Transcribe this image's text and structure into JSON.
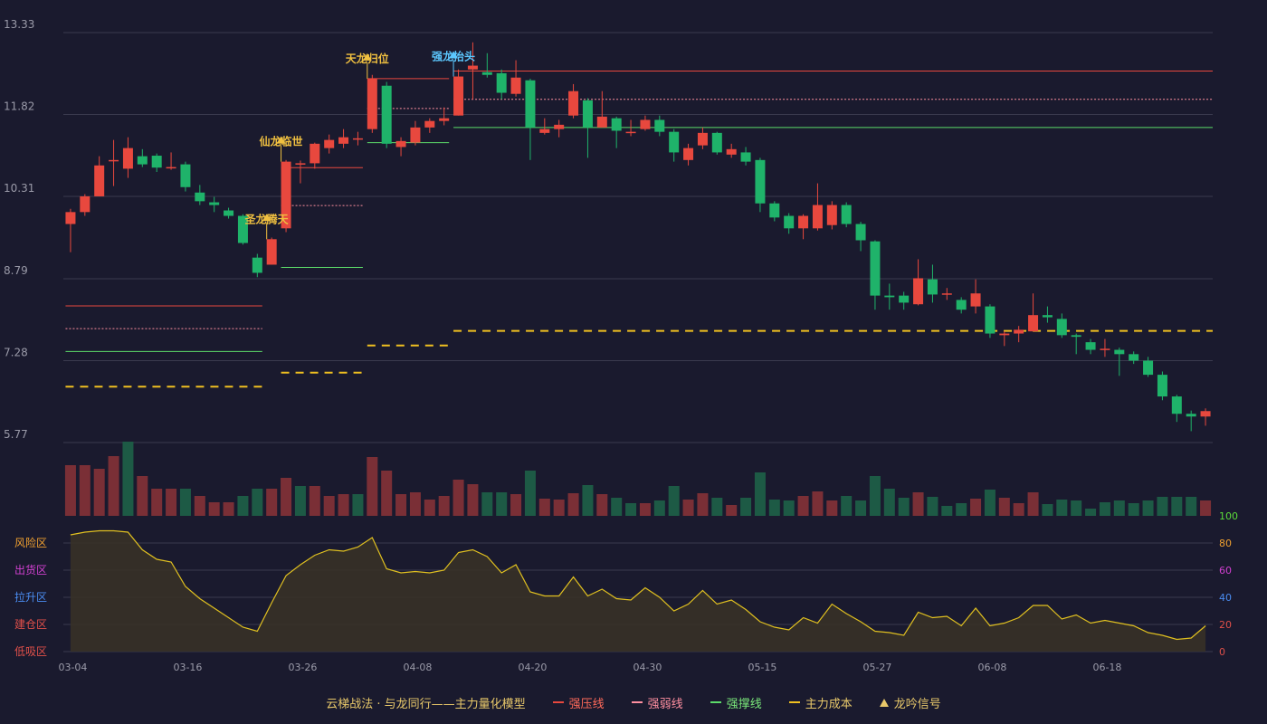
{
  "colors": {
    "background": "#1a1a2e",
    "up": "#e8483e",
    "down": "#1fb36a",
    "vol_up": "#7a2f36",
    "vol_down": "#1d5a45",
    "pressure": "#e8483e",
    "weak": "#ff8fa0",
    "support": "#5cdc6a",
    "cost": "#f0c020",
    "label_gold": "#f0c040",
    "label_blue": "#5cc8ff",
    "oscillator_line": "#e0c020",
    "grid": "#3a3a4e",
    "axis_text": "#9a9aa8"
  },
  "legend": {
    "title": "云梯战法 · 与龙同行——主力量化模型",
    "pressure": "强压线",
    "weak": "强弱线",
    "support": "强撑线",
    "cost": "主力成本",
    "signal": "龙吟信号"
  },
  "icons": {
    "signal": "triangle-up-icon"
  },
  "chart_data": [
    {
      "type": "candlestick",
      "title": "",
      "ylim": [
        5.77,
        13.33
      ],
      "yticks": [
        "13.33",
        "11.82",
        "10.31",
        "8.79",
        "7.28",
        "5.77"
      ],
      "xtick_labels": [
        {
          "index": 0,
          "label": "03-04"
        },
        {
          "index": 8,
          "label": "03-16"
        },
        {
          "index": 16,
          "label": "03-26"
        },
        {
          "index": 24,
          "label": "04-08"
        },
        {
          "index": 32,
          "label": "04-20"
        },
        {
          "index": 40,
          "label": "04-30"
        },
        {
          "index": 48,
          "label": "05-15"
        },
        {
          "index": 56,
          "label": "05-27"
        },
        {
          "index": 64,
          "label": "06-08"
        },
        {
          "index": 72,
          "label": "06-18"
        }
      ],
      "ohlc": [
        [
          9.8,
          10.02,
          9.28,
          10.08
        ],
        [
          10.02,
          10.31,
          9.95,
          10.35
        ],
        [
          10.31,
          10.88,
          10.31,
          11.05
        ],
        [
          10.98,
          10.98,
          10.5,
          11.35
        ],
        [
          10.82,
          11.2,
          10.65,
          11.4
        ],
        [
          11.05,
          10.9,
          10.85,
          11.18
        ],
        [
          11.06,
          10.84,
          10.76,
          11.1
        ],
        [
          10.85,
          10.85,
          10.8,
          11.12
        ],
        [
          10.9,
          10.48,
          10.4,
          10.95
        ],
        [
          10.38,
          10.22,
          10.15,
          10.52
        ],
        [
          10.2,
          10.15,
          10.02,
          10.3
        ],
        [
          10.05,
          9.95,
          9.9,
          10.1
        ],
        [
          9.95,
          9.45,
          9.42,
          9.98
        ],
        [
          9.18,
          8.9,
          8.82,
          9.25
        ],
        [
          9.05,
          9.52,
          9.05,
          9.55
        ],
        [
          9.72,
          10.95,
          9.65,
          10.98
        ],
        [
          10.92,
          10.92,
          10.55,
          10.97
        ],
        [
          10.92,
          11.28,
          10.82,
          11.3
        ],
        [
          11.2,
          11.35,
          11.1,
          11.45
        ],
        [
          11.28,
          11.4,
          11.2,
          11.55
        ],
        [
          11.38,
          11.38,
          11.25,
          11.5
        ],
        [
          11.55,
          12.48,
          11.48,
          12.55
        ],
        [
          12.35,
          11.28,
          11.2,
          12.42
        ],
        [
          11.22,
          11.33,
          11.05,
          11.4
        ],
        [
          11.3,
          11.58,
          11.25,
          11.7
        ],
        [
          11.58,
          11.7,
          11.48,
          11.75
        ],
        [
          11.7,
          11.75,
          11.62,
          11.95
        ],
        [
          11.8,
          12.52,
          11.8,
          12.65
        ],
        [
          12.65,
          12.72,
          12.1,
          13.15
        ],
        [
          12.6,
          12.55,
          12.5,
          12.95
        ],
        [
          12.58,
          12.22,
          12.1,
          12.65
        ],
        [
          12.2,
          12.5,
          12.15,
          12.82
        ],
        [
          12.45,
          11.58,
          10.98,
          12.48
        ],
        [
          11.48,
          11.55,
          11.45,
          11.75
        ],
        [
          11.55,
          11.63,
          11.4,
          11.72
        ],
        [
          11.8,
          12.25,
          11.75,
          12.38
        ],
        [
          12.08,
          11.58,
          11.02,
          12.12
        ],
        [
          11.58,
          11.78,
          11.58,
          12.25
        ],
        [
          11.75,
          11.52,
          11.2,
          11.78
        ],
        [
          11.5,
          11.5,
          11.42,
          11.72
        ],
        [
          11.55,
          11.72,
          11.52,
          11.8
        ],
        [
          11.72,
          11.5,
          11.42,
          11.8
        ],
        [
          11.5,
          11.12,
          10.95,
          11.55
        ],
        [
          10.98,
          11.2,
          10.88,
          11.28
        ],
        [
          11.25,
          11.48,
          11.18,
          11.58
        ],
        [
          11.48,
          11.12,
          11.08,
          11.5
        ],
        [
          11.08,
          11.18,
          11.02,
          11.28
        ],
        [
          11.12,
          10.95,
          10.88,
          11.22
        ],
        [
          10.98,
          10.18,
          10.02,
          11.02
        ],
        [
          10.18,
          9.92,
          9.85,
          10.22
        ],
        [
          9.95,
          9.72,
          9.62,
          10.0
        ],
        [
          9.72,
          9.95,
          9.52,
          9.98
        ],
        [
          9.72,
          10.15,
          9.68,
          10.55
        ],
        [
          9.78,
          10.15,
          9.7,
          10.22
        ],
        [
          10.15,
          9.8,
          9.74,
          10.2
        ],
        [
          9.8,
          9.5,
          9.3,
          9.84
        ],
        [
          9.48,
          8.48,
          8.22,
          9.5
        ],
        [
          8.48,
          8.45,
          8.22,
          8.7
        ],
        [
          8.48,
          8.35,
          8.22,
          8.55
        ],
        [
          8.32,
          8.8,
          8.3,
          9.15
        ],
        [
          8.78,
          8.5,
          8.35,
          9.05
        ],
        [
          8.52,
          8.52,
          8.4,
          8.62
        ],
        [
          8.4,
          8.22,
          8.15,
          8.45
        ],
        [
          8.28,
          8.52,
          8.15,
          8.78
        ],
        [
          8.28,
          7.78,
          7.7,
          8.32
        ],
        [
          7.75,
          7.78,
          7.55,
          7.82
        ],
        [
          7.78,
          7.85,
          7.62,
          7.92
        ],
        [
          7.82,
          8.12,
          7.82,
          8.52
        ],
        [
          8.12,
          8.08,
          7.98,
          8.28
        ],
        [
          8.05,
          7.75,
          7.7,
          8.15
        ],
        [
          7.75,
          7.72,
          7.4,
          7.78
        ],
        [
          7.62,
          7.48,
          7.4,
          7.68
        ],
        [
          7.5,
          7.5,
          7.35,
          7.68
        ],
        [
          7.48,
          7.4,
          7.0,
          7.52
        ],
        [
          7.4,
          7.28,
          7.22,
          7.45
        ],
        [
          7.28,
          7.02,
          6.98,
          7.35
        ],
        [
          7.02,
          6.62,
          6.55,
          7.08
        ],
        [
          6.62,
          6.3,
          6.15,
          6.65
        ],
        [
          6.3,
          6.25,
          5.98,
          6.36
        ],
        [
          6.25,
          6.35,
          6.08,
          6.4
        ]
      ],
      "volume": [
        56,
        56,
        52,
        66,
        82,
        44,
        30,
        30,
        30,
        22,
        15,
        15,
        22,
        30,
        30,
        42,
        33,
        33,
        22,
        24,
        24,
        65,
        50,
        24,
        26,
        18,
        22,
        40,
        35,
        26,
        26,
        24,
        50,
        19,
        18,
        25,
        34,
        24,
        20,
        14,
        14,
        17,
        33,
        18,
        25,
        20,
        12,
        20,
        48,
        18,
        17,
        22,
        27,
        17,
        22,
        17,
        44,
        30,
        20,
        26,
        21,
        11,
        14,
        19,
        29,
        20,
        14,
        26,
        13,
        18,
        17,
        8,
        15,
        17,
        14,
        17,
        21,
        21,
        21,
        17
      ],
      "volume_up": [
        true,
        true,
        true,
        true,
        false,
        true,
        true,
        true,
        false,
        true,
        true,
        true,
        false,
        false,
        true,
        true,
        false,
        true,
        true,
        true,
        false,
        true,
        true,
        true,
        true,
        true,
        true,
        true,
        true,
        false,
        false,
        true,
        false,
        true,
        true,
        true,
        false,
        true,
        false,
        false,
        true,
        false,
        false,
        true,
        true,
        false,
        true,
        false,
        false,
        false,
        false,
        true,
        true,
        true,
        false,
        false,
        false,
        false,
        false,
        true,
        false,
        false,
        false,
        true,
        false,
        true,
        true,
        true,
        false,
        false,
        false,
        false,
        false,
        false,
        false,
        false,
        false,
        false,
        false,
        true
      ],
      "annotations": [
        {
          "label": "圣龙腾天",
          "index": 14,
          "value": 9.52,
          "color_key": "label_gold"
        },
        {
          "label": "仙龙临世",
          "index": 15,
          "value": 10.95,
          "color_key": "label_gold"
        },
        {
          "label": "天龙归位",
          "index": 21,
          "value": 12.48,
          "color_key": "label_gold"
        },
        {
          "label": "强龙抬头",
          "index": 27,
          "value": 12.52,
          "color_key": "label_blue"
        }
      ],
      "pressure_segments": [
        {
          "start": 0,
          "end": 13,
          "value": 8.29
        },
        {
          "start": 15,
          "end": 20,
          "value": 10.84
        },
        {
          "start": 21,
          "end": 26,
          "value": 12.48
        },
        {
          "start": 27,
          "end": 79,
          "value": 12.62
        }
      ],
      "weak_segments": [
        {
          "start": 0,
          "end": 13,
          "value": 7.87
        },
        {
          "start": 15,
          "end": 20,
          "value": 10.14
        },
        {
          "start": 21,
          "end": 26,
          "value": 11.93
        },
        {
          "start": 27,
          "end": 79,
          "value": 12.1
        }
      ],
      "support_segments": [
        {
          "start": 0,
          "end": 13,
          "value": 7.45
        },
        {
          "start": 15,
          "end": 20,
          "value": 9.0
        },
        {
          "start": 21,
          "end": 26,
          "value": 11.3
        },
        {
          "start": 27,
          "end": 79,
          "value": 11.58
        }
      ],
      "cost_segments": [
        {
          "start": 0,
          "end": 13,
          "value": 6.8
        },
        {
          "start": 15,
          "end": 20,
          "value": 7.06
        },
        {
          "start": 21,
          "end": 26,
          "value": 7.56
        },
        {
          "start": 27,
          "end": 79,
          "value": 7.83
        }
      ]
    },
    {
      "type": "area",
      "title": "",
      "ylim": [
        0,
        100
      ],
      "yticks_right": [
        "100",
        "80",
        "60",
        "40",
        "20",
        "0"
      ],
      "ytick_colors": [
        "#5cdc3a",
        "#f0a030",
        "#d040d0",
        "#4a8cf0",
        "#e0504a",
        "#e0504a"
      ],
      "zones": [
        {
          "label": "风险区",
          "value": 80,
          "color": "#f0a030"
        },
        {
          "label": "出货区",
          "value": 60,
          "color": "#d040d0"
        },
        {
          "label": "拉升区",
          "value": 40,
          "color": "#4a8cf0"
        },
        {
          "label": "建仓区",
          "value": 20,
          "color": "#e0504a"
        },
        {
          "label": "低吸区",
          "value": 0,
          "color": "#e0504a"
        }
      ],
      "values": [
        86,
        88,
        89,
        89,
        88,
        75,
        68,
        66,
        48,
        39,
        32,
        25,
        18,
        15,
        36,
        56,
        64,
        71,
        75,
        74,
        77,
        84,
        61,
        58,
        59,
        58,
        60,
        73,
        75,
        70,
        58,
        64,
        44,
        41,
        41,
        55,
        41,
        46,
        39,
        38,
        47,
        40,
        30,
        35,
        45,
        35,
        38,
        31,
        22,
        18,
        16,
        25,
        21,
        35,
        28,
        22,
        15,
        14,
        12,
        29,
        25,
        26,
        19,
        32,
        19,
        21,
        25,
        34,
        34,
        24,
        27,
        21,
        23,
        21,
        19,
        14,
        12,
        9,
        10,
        19
      ]
    }
  ]
}
